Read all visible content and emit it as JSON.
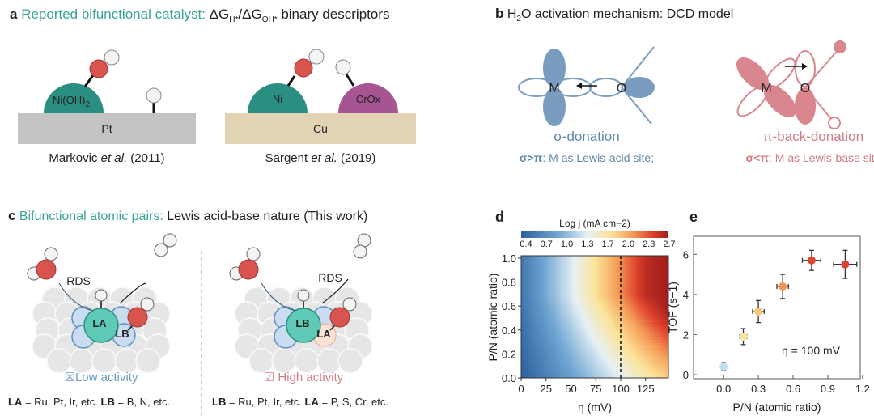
{
  "panel_a": {
    "label": "a",
    "title_colored": " Reported bifunctional catalyst: ",
    "title_dg1": "ΔG",
    "title_sub1": "H*",
    "title_dg2": "/ΔG",
    "title_sub2": "OH*",
    "title_rest": " binary descriptors",
    "left": {
      "substrate": "Pt",
      "dome": "Ni(OH)",
      "dome_sub": "2",
      "caption_pre": "Markovic ",
      "caption_italic": "et al.",
      "caption_post": " (2011)"
    },
    "right": {
      "substrate": "Cu",
      "dome1": "Ni",
      "dome2": "CrOx",
      "caption_pre": "Sargent ",
      "caption_italic": "et al.",
      "caption_post": " (2019)"
    },
    "colors": {
      "teal": "#2a8f82",
      "pt": "#c3c3c3",
      "cu": "#e3d3b5",
      "crox": "#a65592",
      "oxygen": "#d9534f"
    }
  },
  "panel_b": {
    "label": "b",
    "title_pre": " H",
    "title_sub": "2",
    "title_post": "O activation mechanism: DCD model",
    "left": {
      "metal": "M",
      "oxygen": "O",
      "name": "σ-donation",
      "cond_bold": "σ>π",
      "cond_rest": ": M as Lewis-acid site;"
    },
    "right": {
      "metal": "M",
      "oxygen": "O",
      "name": "π-back-donation",
      "cond_bold": "σ<π",
      "cond_rest": ": M as Lewis-base site"
    },
    "colors": {
      "blue": "#7a9cc0",
      "red": "#d9868e"
    }
  },
  "panel_c": {
    "label": "c",
    "title_colored": " Bifunctional atomic pairs: ",
    "title_rest": "Lewis acid-base nature (This work)",
    "left": {
      "rds": "RDS",
      "center": "LA",
      "neighbor": "LB",
      "activity": "☒Low activity",
      "def_b1": "LA",
      "def_t1": " = Ru, Pt, Ir, etc. ",
      "def_b2": "LB",
      "def_t2": " = B, N, etc."
    },
    "right": {
      "rds": "RDS",
      "center": "LB",
      "neighbor": "LA",
      "activity": "☑ High activity",
      "def_b1": "LB",
      "def_t1": " = Ru, Pt, Ir, etc. ",
      "def_b2": "LA",
      "def_t2": " = P, S, Cr, etc."
    }
  },
  "chart_data": [
    {
      "panel": "d",
      "type": "heatmap",
      "colorbar_title": "Log j (mA cm−2)",
      "colorbar_ticks": [
        "0.4",
        "0.7",
        "1.0",
        "1.3",
        "1.7",
        "2.0",
        "2.3",
        "2.7"
      ],
      "colorbar_range": [
        0.4,
        2.7
      ],
      "xlabel": "η (mV)",
      "ylabel": "P/N (atomic ratio)",
      "xlim": [
        0,
        148
      ],
      "ylim": [
        0,
        1.02
      ],
      "xticks": [
        0,
        25,
        50,
        75,
        100,
        125
      ],
      "yticks": [
        "0.0",
        "0.2",
        "0.4",
        "0.6",
        "0.8",
        "1.0"
      ],
      "vline": 100,
      "x": [
        0,
        25,
        50,
        75,
        100,
        125,
        148
      ],
      "y": [
        0,
        0.1,
        0.2,
        0.3,
        0.4,
        0.5,
        0.6,
        0.7,
        0.8,
        0.9,
        1.0
      ],
      "z": [
        [
          0.4,
          0.66,
          0.92,
          1.18,
          1.44,
          1.69,
          1.9
        ],
        [
          0.43,
          0.71,
          0.99,
          1.26,
          1.54,
          1.82,
          2.04
        ],
        [
          0.46,
          0.75,
          1.05,
          1.35,
          1.65,
          1.95,
          2.19
        ],
        [
          0.49,
          0.8,
          1.12,
          1.44,
          1.76,
          2.07,
          2.33
        ],
        [
          0.51,
          0.85,
          1.19,
          1.53,
          1.86,
          2.2,
          2.47
        ],
        [
          0.54,
          0.9,
          1.26,
          1.61,
          1.97,
          2.33,
          2.61
        ],
        [
          0.57,
          0.95,
          1.33,
          1.7,
          2.08,
          2.45,
          2.7
        ],
        [
          0.6,
          1.0,
          1.39,
          1.79,
          2.19,
          2.58,
          2.7
        ],
        [
          0.6,
          1.0,
          1.39,
          1.79,
          2.19,
          2.58,
          2.7
        ],
        [
          0.6,
          1.0,
          1.39,
          1.79,
          2.19,
          2.58,
          2.7
        ],
        [
          0.6,
          1.0,
          1.39,
          1.79,
          2.19,
          2.58,
          2.7
        ]
      ]
    },
    {
      "panel": "e",
      "type": "scatter",
      "xlabel": "P/N (atomic ratio)",
      "ylabel": "TOF (s−1)",
      "xlim": [
        -0.26,
        1.18
      ],
      "ylim": [
        -0.2,
        6.9
      ],
      "xticks": [
        "0.0",
        "0.3",
        "0.6",
        "0.9",
        "1.2"
      ],
      "yticks": [
        "0",
        "2",
        "4",
        "6"
      ],
      "annotation": "η = 100 mV",
      "points": [
        {
          "x": 0.0,
          "y": 0.4,
          "xerr": 0.0,
          "yerr": 0.2,
          "color": "#bfe0ee"
        },
        {
          "x": 0.17,
          "y": 1.9,
          "xerr": 0.03,
          "yerr": 0.4,
          "color": "#f3e7a6"
        },
        {
          "x": 0.3,
          "y": 3.15,
          "xerr": 0.05,
          "yerr": 0.55,
          "color": "#f6c47a"
        },
        {
          "x": 0.51,
          "y": 4.4,
          "xerr": 0.05,
          "yerr": 0.6,
          "color": "#f1955a"
        },
        {
          "x": 0.76,
          "y": 5.7,
          "xerr": 0.08,
          "yerr": 0.5,
          "color": "#e0452e"
        },
        {
          "x": 1.05,
          "y": 5.5,
          "xerr": 0.1,
          "yerr": 0.7,
          "color": "#d9432e"
        }
      ]
    }
  ]
}
